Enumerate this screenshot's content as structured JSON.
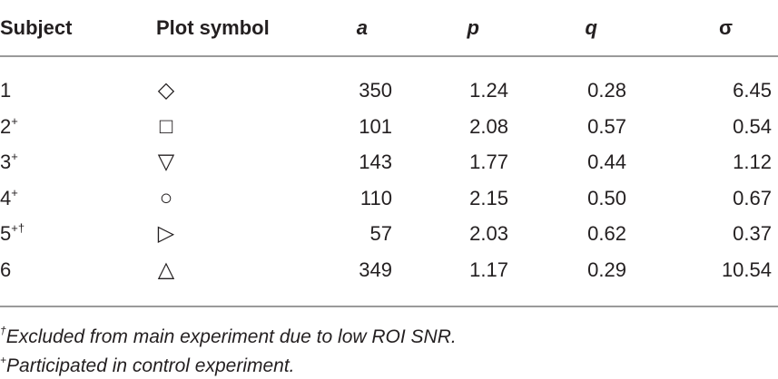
{
  "table": {
    "header": [
      "Subject",
      "Plot symbol",
      "a",
      "p",
      "q",
      "σ"
    ],
    "rows": [
      [
        {
          "base": "1"
        },
        "◇",
        "350",
        "1.24",
        "0.28",
        "6.45"
      ],
      [
        {
          "base": "2",
          "sup": "+"
        },
        "□",
        "101",
        "2.08",
        "0.57",
        "0.54"
      ],
      [
        {
          "base": "3",
          "sup": "+"
        },
        "▽",
        "143",
        "1.77",
        "0.44",
        "1.12"
      ],
      [
        {
          "base": "4",
          "sup": "+"
        },
        "○",
        "110",
        "2.15",
        "0.50",
        "0.67"
      ],
      [
        {
          "base": "5",
          "sup": "+†"
        },
        "▷",
        "57",
        "2.03",
        "0.62",
        "0.37"
      ],
      [
        {
          "base": "6"
        },
        "△",
        "349",
        "1.17",
        "0.29",
        "10.54"
      ]
    ]
  },
  "footnotes": [
    {
      "mark": "†",
      "text": "Excluded from main experiment due to low ROI SNR."
    },
    {
      "mark": "+",
      "text": "Participated in control experiment."
    }
  ]
}
